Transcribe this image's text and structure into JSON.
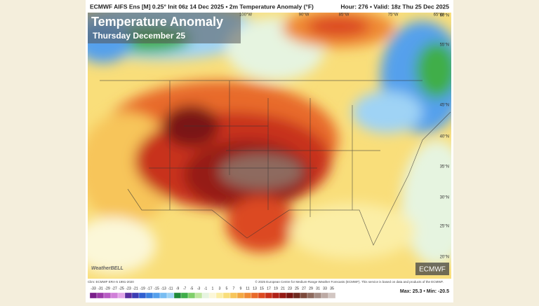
{
  "header": {
    "left": "ECMWF AIFS Ens [M] 0.25° Init 06z 14 Dec 2025 • 2m Temperature Anomaly (°F)",
    "right": "Hour: 276 • Valid: 18z Thu 25 Dec 2025"
  },
  "overlay": {
    "title": "Temperature Anomaly",
    "subtitle": "Thursday December 25"
  },
  "longitude_labels": [
    "100°W",
    "90°W",
    "85°W",
    "75°W",
    "65°W"
  ],
  "latitude_labels": [
    "60°N",
    "55°N",
    "45°N",
    "40°N",
    "35°N",
    "30°N",
    "25°N",
    "20°N"
  ],
  "footer": {
    "climatology": "Clim: ECMWF ERA-5 1991-2020",
    "copyright": "© 2025 European Centre for Medium-Range Weather Forecasts (ECMWF). This service is based on data and products of the ECMWF.",
    "logo": "ECMWF",
    "watermark": "WeatherBELL"
  },
  "colorbar": {
    "ticks": [
      -33,
      -31,
      -29,
      -27,
      -25,
      -23,
      -21,
      -19,
      -17,
      -15,
      -13,
      -11,
      -9,
      -7,
      -5,
      -3,
      -1,
      1,
      3,
      5,
      7,
      9,
      11,
      13,
      15,
      17,
      19,
      21,
      23,
      25,
      27,
      29,
      31,
      33,
      35
    ],
    "colors": [
      "#7a1f8a",
      "#9b3aa8",
      "#b85cc4",
      "#d07fd8",
      "#e3a6e8",
      "#5a2ea0",
      "#3c3cb4",
      "#2f5fd0",
      "#3b82e0",
      "#55a0ec",
      "#78bdf2",
      "#9fd3f5",
      "#1f8a3a",
      "#3fae4a",
      "#7fcf6a",
      "#bfe6a0",
      "#e6f4e0",
      "#fbf7d8",
      "#fbeea6",
      "#f9de7a",
      "#f7c55a",
      "#f3a843",
      "#ef8a35",
      "#e86a2a",
      "#dc4a22",
      "#c8321c",
      "#b02218",
      "#961a14",
      "#7a1612",
      "#6e2a20",
      "#7d4a3c",
      "#8e6a5e",
      "#a48c84",
      "#bcaaa4",
      "#d2c6c2"
    ]
  },
  "stats": "Max: 25.3 • Min: -20.5"
}
